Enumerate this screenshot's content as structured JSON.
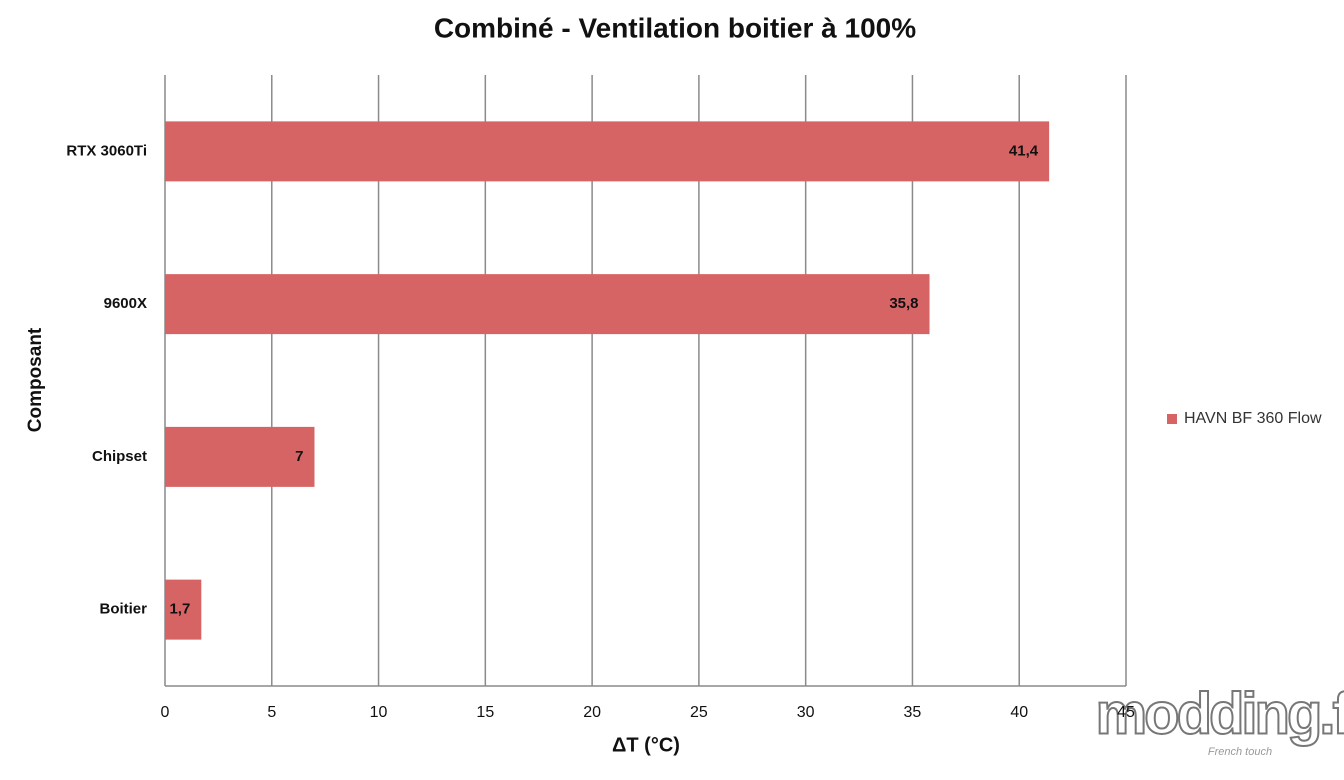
{
  "chart_data": {
    "type": "hbar",
    "title": "Combiné - Ventilation boitier à 100%",
    "x_label": "ΔT (°C)",
    "y_label": "Composant",
    "categories": [
      "RTX 3060Ti",
      "9600X",
      "Chipset",
      "Boitier"
    ],
    "series": [
      {
        "name": "HAVN BF 360 Flow",
        "color": "#d76464",
        "values": [
          41.4,
          35.8,
          7,
          1.7
        ],
        "value_labels": [
          "41,4",
          "35,8",
          "7",
          "1,7"
        ]
      }
    ],
    "xlim": [
      0,
      45
    ],
    "xticks": [
      0,
      5,
      10,
      15,
      20,
      25,
      30,
      35,
      40,
      45
    ],
    "grid": true,
    "legend": "right",
    "watermark": "modding.fr",
    "watermark_sub": "French touch"
  }
}
